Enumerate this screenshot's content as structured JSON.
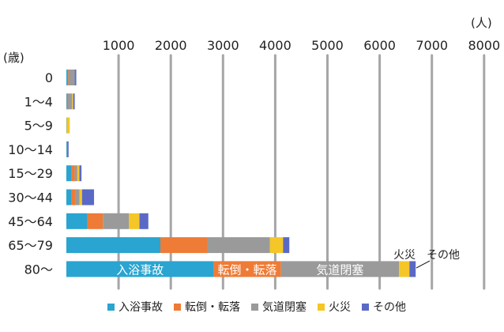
{
  "chart_data": {
    "type": "bar",
    "orientation": "horizontal",
    "stacked": true,
    "unit_x": "(人)",
    "unit_y": "(歳)",
    "xlim": [
      0,
      8000
    ],
    "x_ticks": [
      "1000",
      "2000",
      "3000",
      "4000",
      "5000",
      "6000",
      "7000",
      "8000"
    ],
    "x_tick_values": [
      1000,
      2000,
      3000,
      4000,
      5000,
      6000,
      7000,
      8000
    ],
    "grid": true,
    "legend_position": "bottom",
    "categories": [
      "0",
      "1〜4",
      "5〜9",
      "10〜14",
      "15〜29",
      "30〜44",
      "45〜64",
      "65〜79",
      "80〜"
    ],
    "series": [
      {
        "name": "入浴事故",
        "color": "#2aa4d0",
        "values": [
          20,
          10,
          5,
          10,
          100,
          100,
          400,
          1800,
          2820
        ]
      },
      {
        "name": "転倒・転落",
        "color": "#ee7b36",
        "values": [
          20,
          20,
          0,
          0,
          60,
          80,
          300,
          900,
          1290
        ]
      },
      {
        "name": "気道閉塞",
        "color": "#9a9a9a",
        "values": [
          120,
          80,
          0,
          10,
          50,
          70,
          500,
          1200,
          2260
        ]
      },
      {
        "name": "火災",
        "color": "#f5c627",
        "values": [
          0,
          20,
          60,
          0,
          40,
          50,
          200,
          250,
          200
        ]
      },
      {
        "name": "その他",
        "color": "#5b69c6",
        "values": [
          30,
          30,
          0,
          20,
          40,
          230,
          170,
          120,
          120
        ]
      }
    ],
    "annotations": {
      "bar_labels": [
        "入浴事故",
        "転倒・転落",
        "気道閉塞"
      ],
      "callouts": [
        "火災",
        "その他"
      ]
    }
  }
}
